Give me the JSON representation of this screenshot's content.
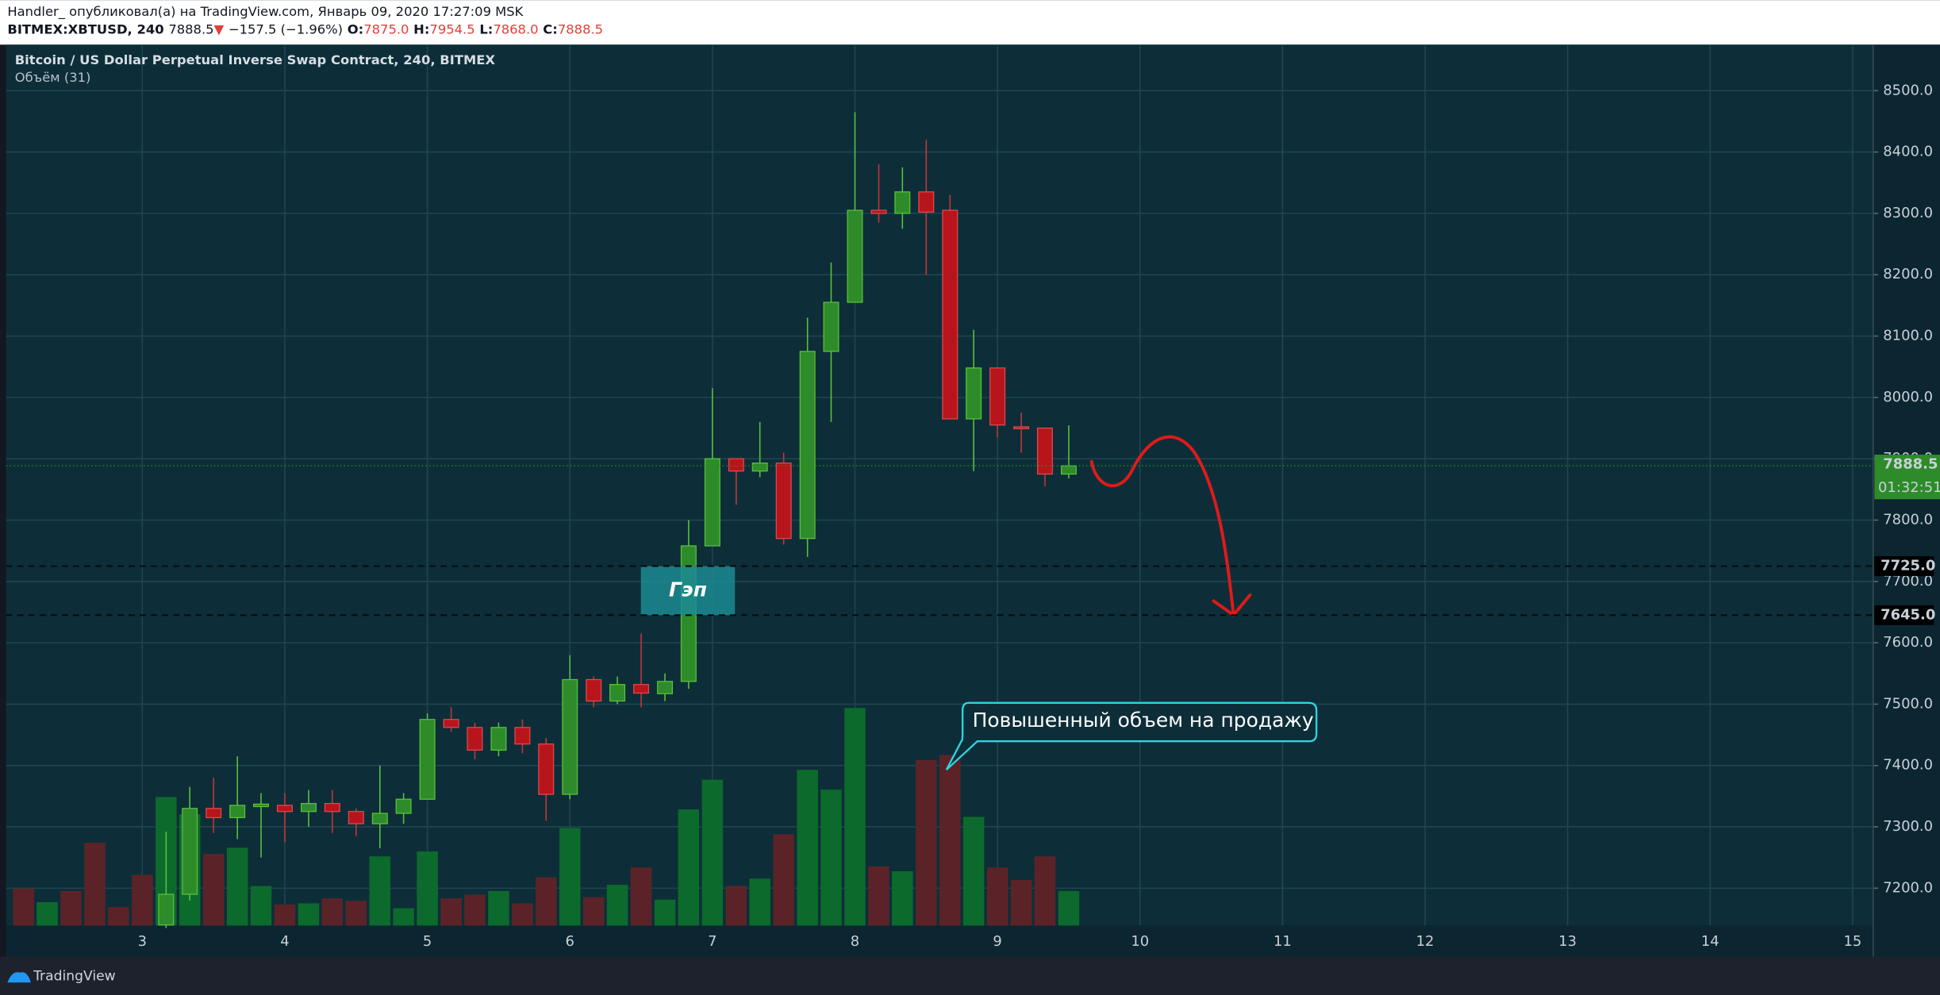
{
  "header": {
    "author_line": "Handler_ опубликовал(а) на TradingView.com, Январь 09, 2020 17:27:09 MSK",
    "symbol": "BITMEX:XBTUSD, 240",
    "last": "7888.5",
    "arrow": "▼",
    "change": "−157.5 (−1.96%)",
    "o_label": "O:",
    "o": "7875.0",
    "h_label": "H:",
    "h": "7954.5",
    "l_label": "L:",
    "l": "7868.0",
    "c_label": "C:",
    "c": "7888.5"
  },
  "footer": {
    "brand": "TradingView"
  },
  "chart_data": {
    "type": "candlestick",
    "title": "Bitcoin / US Dollar Perpetual Inverse Swap Contract, 240, BITMEX",
    "subtitle": "Объём (31)",
    "x": [
      2.167,
      2.333,
      2.5,
      2.667,
      2.833,
      3.0,
      3.167,
      3.333,
      3.5,
      3.667,
      3.833,
      4.0,
      4.167,
      4.333,
      4.5,
      4.667,
      4.833,
      5.0,
      5.167,
      5.333,
      5.5,
      5.667,
      5.833,
      6.0,
      6.167,
      6.333,
      6.5,
      6.667,
      6.833,
      7.0,
      7.167,
      7.333,
      7.5,
      7.667,
      7.833,
      8.0,
      8.167,
      8.333,
      8.5,
      8.667,
      8.833,
      9.0,
      9.167,
      9.333,
      9.5
    ],
    "open": [
      null,
      null,
      null,
      null,
      null,
      null,
      7140,
      7190,
      7330,
      7315,
      7333,
      7335,
      7325,
      7338,
      7325,
      7305,
      7322,
      7345,
      7475,
      7462,
      7425,
      7462,
      7435,
      7353,
      7540,
      7505,
      7532,
      7517,
      7537,
      7758,
      7900,
      7880,
      7893,
      7770,
      8075,
      8155,
      8305,
      8300,
      8335,
      8305,
      7965,
      8048,
      7952,
      7950,
      7875
    ],
    "high": [
      null,
      null,
      null,
      null,
      null,
      null,
      7292,
      7365,
      7380,
      7415,
      7355,
      7355,
      7360,
      7360,
      7330,
      7400,
      7355,
      7485,
      7495,
      7470,
      7470,
      7475,
      7445,
      7580,
      7545,
      7545,
      7615,
      7550,
      7800,
      8015,
      7900,
      7960,
      7910,
      8130,
      8220,
      8465,
      8380,
      8375,
      8420,
      8330,
      8110,
      8048,
      7975,
      7950,
      7954.5
    ],
    "low": [
      null,
      null,
      null,
      null,
      null,
      null,
      7135,
      7180,
      7290,
      7280,
      7250,
      7275,
      7300,
      7290,
      7285,
      7265,
      7305,
      7345,
      7455,
      7410,
      7415,
      7420,
      7310,
      7345,
      7495,
      7500,
      7495,
      7505,
      7525,
      7758,
      7825,
      7870,
      7760,
      7740,
      7960,
      8155,
      8285,
      8275,
      8200,
      7965,
      7880,
      7935,
      7910,
      7855,
      7868
    ],
    "close": [
      null,
      null,
      null,
      null,
      null,
      null,
      7190,
      7330,
      7315,
      7335,
      7337,
      7325,
      7338,
      7325,
      7305,
      7322,
      7345,
      7475,
      7462,
      7425,
      7462,
      7435,
      7353,
      7540,
      7505,
      7532,
      7518,
      7537,
      7758,
      7900,
      7880,
      7893,
      7770,
      8075,
      8155,
      8305,
      8300,
      8335,
      8302,
      7965,
      8048,
      7955,
      7950,
      7875,
      7888.5
    ],
    "volume": [
      30,
      19,
      28,
      67,
      15,
      41,
      104,
      90,
      58,
      63,
      32,
      17,
      18,
      22,
      20,
      56,
      14,
      60,
      22,
      25,
      28,
      18,
      39,
      79,
      23,
      33,
      47,
      21,
      94,
      118,
      32,
      38,
      74,
      126,
      110,
      176,
      48,
      44,
      134,
      138,
      88,
      47,
      37,
      56,
      28
    ],
    "volume_colors": [
      "#5b2328",
      "#0c6a2c",
      "#5b2328",
      "#5b2328",
      "#5b2328",
      "#5b2328",
      "#0c6a2c",
      "#0c6a2c",
      "#5b2328",
      "#0c6a2c",
      "#0c6a2c",
      "#5b2328",
      "#0c6a2c",
      "#5b2328",
      "#5b2328",
      "#0c6a2c",
      "#0c6a2c",
      "#0c6a2c",
      "#5b2328",
      "#5b2328",
      "#0c6a2c",
      "#5b2328",
      "#5b2328",
      "#0c6a2c",
      "#5b2328",
      "#0c6a2c",
      "#5b2328",
      "#0c6a2c",
      "#0c6a2c",
      "#0c6a2c",
      "#5b2328",
      "#0c6a2c",
      "#5b2328",
      "#0c6a2c",
      "#0c6a2c",
      "#0c6a2c",
      "#5b2328",
      "#0c6a2c",
      "#5b2328",
      "#5b2328",
      "#0c6a2c",
      "#5b2328",
      "#5b2328",
      "#5b2328",
      "#0c6a2c"
    ],
    "up_color": "#2e8b2a",
    "down_color": "#b8141b",
    "xlim": [
      2.045,
      15.144
    ],
    "xticks": [
      3,
      4,
      5,
      6,
      7,
      8,
      9,
      10,
      11,
      12,
      13,
      14,
      15
    ],
    "ylim": [
      7139,
      8575
    ],
    "yticks": [
      {
        "value": 7200,
        "label": "7200.0"
      },
      {
        "value": 7300,
        "label": "7300.0"
      },
      {
        "value": 7400,
        "label": "7400.0"
      },
      {
        "value": 7500,
        "label": "7500.0"
      },
      {
        "value": 7600,
        "label": "7600.0"
      },
      {
        "value": 7700,
        "label": "7700.0"
      },
      {
        "value": 7800,
        "label": "7800.0"
      },
      {
        "value": 7900,
        "label": "7900.0"
      },
      {
        "value": 8000,
        "label": "8000.0"
      },
      {
        "value": 8100,
        "label": "8100.0"
      },
      {
        "value": 8200,
        "label": "8200.0"
      },
      {
        "value": 8300,
        "label": "8300.0"
      },
      {
        "value": 8400,
        "label": "8400.0"
      },
      {
        "value": 8500,
        "label": "8500.0"
      }
    ],
    "grid": true,
    "last_price": {
      "value": 7888.5,
      "label": "7888.5",
      "timer": "01:32:51"
    },
    "levels": [
      {
        "value": 7725,
        "label": "7725.0"
      },
      {
        "value": 7645,
        "label": "7645.0"
      }
    ],
    "annotations": {
      "gap": "Гэп",
      "callout": "Повышенный объем на продажу"
    }
  }
}
